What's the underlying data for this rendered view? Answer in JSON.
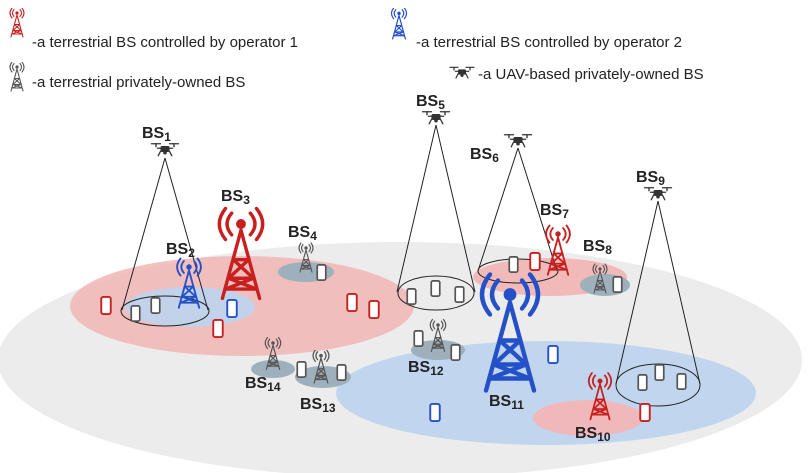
{
  "legend": {
    "operator1": "-a terrestrial BS controlled by operator 1",
    "operator2": "-a terrestrial BS controlled by operator 2",
    "private_terrestrial": "-a terrestrial privately-owned BS",
    "private_uav": "-a UAV-based privately-owned BS"
  },
  "stations": [
    {
      "prefix": "BS",
      "num": "1"
    },
    {
      "prefix": "BS",
      "num": "2"
    },
    {
      "prefix": "BS",
      "num": "3"
    },
    {
      "prefix": "BS",
      "num": "4"
    },
    {
      "prefix": "BS",
      "num": "5"
    },
    {
      "prefix": "BS",
      "num": "6"
    },
    {
      "prefix": "BS",
      "num": "7"
    },
    {
      "prefix": "BS",
      "num": "8"
    },
    {
      "prefix": "BS",
      "num": "9"
    },
    {
      "prefix": "BS",
      "num": "10"
    },
    {
      "prefix": "BS",
      "num": "11"
    },
    {
      "prefix": "BS",
      "num": "12"
    },
    {
      "prefix": "BS",
      "num": "13"
    },
    {
      "prefix": "BS",
      "num": "14"
    }
  ],
  "colors": {
    "operator1": "#c8201f",
    "operator2": "#2450c8",
    "private": "#555555",
    "operator1_area": "#f2b6b6",
    "operator2_area": "#bcd4ee",
    "private_area": "#9fb0bd",
    "ground": "#ececec"
  }
}
